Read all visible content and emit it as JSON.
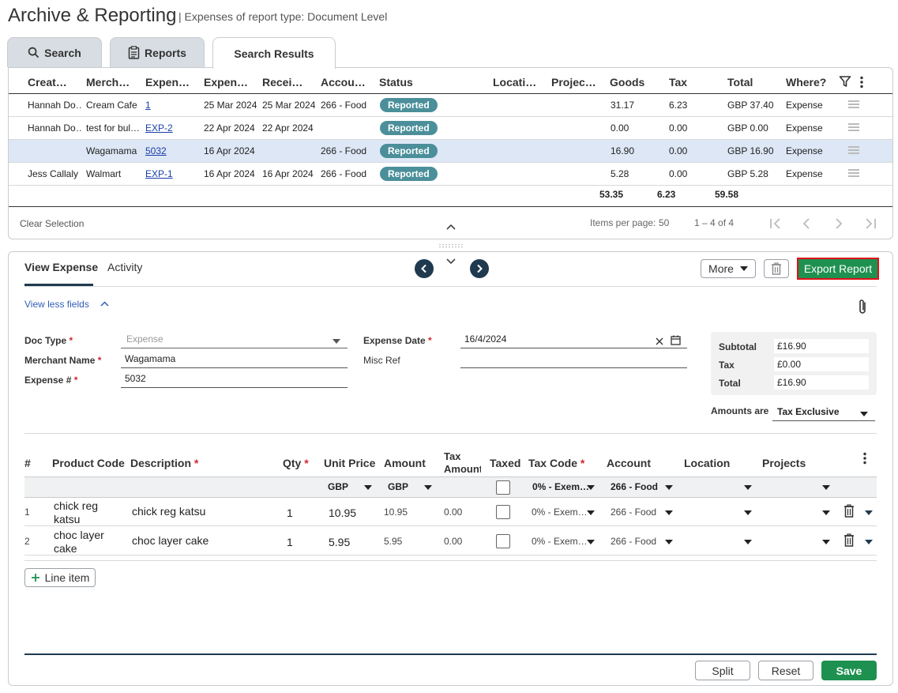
{
  "header": {
    "title": "Archive & Reporting",
    "subtitle": "| Expenses of report type: Document Level"
  },
  "tabs": [
    {
      "label": "Search",
      "icon": "search-icon"
    },
    {
      "label": "Reports",
      "icon": "clipboard-icon"
    },
    {
      "label": "Search Results"
    }
  ],
  "results": {
    "columns": [
      "Creat…",
      "Merch…",
      "Expen…",
      "Expen…",
      "Recei…",
      "Accou…",
      "Status",
      "Locati…",
      "Projec…",
      "Goods",
      "Tax",
      "Total",
      "Where?"
    ],
    "rows": [
      {
        "creator": "Hannah Do…",
        "merchant": "Cream Cafe",
        "expense": "1",
        "expense_date": "25 Mar 2024",
        "received": "25 Mar 2024",
        "account": "266 - Food",
        "status": "Reported",
        "goods": "31.17",
        "tax": "6.23",
        "total": "GBP 37.40",
        "where": "Expense"
      },
      {
        "creator": "Hannah Do…",
        "merchant": "test for bul…",
        "expense": "EXP-2",
        "expense_date": "22 Apr 2024",
        "received": "22 Apr 2024",
        "account": "",
        "status": "Reported",
        "goods": "0.00",
        "tax": "0.00",
        "total": "GBP 0.00",
        "where": "Expense"
      },
      {
        "creator": "",
        "merchant": "Wagamama",
        "expense": "5032",
        "expense_date": "16 Apr 2024",
        "received": "",
        "account": "266 - Food",
        "status": "Reported",
        "goods": "16.90",
        "tax": "0.00",
        "total": "GBP 16.90",
        "where": "Expense"
      },
      {
        "creator": "Jess Callaly",
        "merchant": "Walmart",
        "expense": "EXP-1",
        "expense_date": "16 Apr 2024",
        "received": "16 Apr 2024",
        "account": "266 - Food",
        "status": "Reported",
        "goods": "5.28",
        "tax": "0.00",
        "total": "GBP 5.28",
        "where": "Expense"
      }
    ],
    "selected_row": 2,
    "totals": {
      "goods": "53.35",
      "tax": "6.23",
      "total": "59.58"
    },
    "clear_selection": "Clear Selection",
    "items_per_page_label": "Items per page:",
    "items_per_page": "50",
    "range": "1 – 4 of 4"
  },
  "detail": {
    "tabs": [
      "View Expense",
      "Activity"
    ],
    "more_label": "More",
    "export_label": "Export Report",
    "view_less": "View less fields",
    "doc_type_label": "Doc Type",
    "doc_type_value": "Expense",
    "merchant_label": "Merchant Name",
    "merchant_value": "Wagamama",
    "expense_no_label": "Expense #",
    "expense_no_value": "5032",
    "expense_date_label": "Expense Date",
    "expense_date_value": "16/4/2024",
    "misc_ref_label": "Misc Ref",
    "misc_ref_value": "",
    "subtotal_label": "Subtotal",
    "subtotal_value": "£16.90",
    "tax_label": "Tax",
    "tax_value": "£0.00",
    "total_label": "Total",
    "total_value": "£16.90",
    "amounts_are_label": "Amounts are",
    "amounts_are_value": "Tax Exclusive"
  },
  "line_items": {
    "columns": {
      "num": "#",
      "product_code": "Product Code",
      "description": "Description",
      "qty": "Qty",
      "unit_price": "Unit Price",
      "amount": "Amount",
      "tax_amount": "Tax Amount",
      "taxed": "Taxed",
      "tax_code": "Tax Code",
      "account": "Account",
      "location": "Location",
      "projects": "Projects"
    },
    "defaults": {
      "unit_price_currency": "GBP",
      "amount_currency": "GBP",
      "tax_code": "0% - Exem…",
      "account": "266 - Food"
    },
    "rows": [
      {
        "num": "1",
        "product_code": "chick reg katsu",
        "description": "chick reg katsu",
        "qty": "1",
        "unit_price": "10.95",
        "amount": "10.95",
        "tax_amount": "0.00",
        "tax_code": "0% - Exem…",
        "account": "266 - Food"
      },
      {
        "num": "2",
        "product_code": "choc layer cake",
        "description": "choc layer cake",
        "qty": "1",
        "unit_price": "5.95",
        "amount": "5.95",
        "tax_amount": "0.00",
        "tax_code": "0% - Exem…",
        "account": "266 - Food"
      }
    ],
    "add_label": "Line item"
  },
  "actions": {
    "split": "Split",
    "reset": "Reset",
    "save": "Save"
  },
  "colors": {
    "accent_green": "#1e9150",
    "status_badge": "#4b8f9a",
    "nav_circle": "#1f3a4f",
    "selected_row": "#dde7f5"
  }
}
